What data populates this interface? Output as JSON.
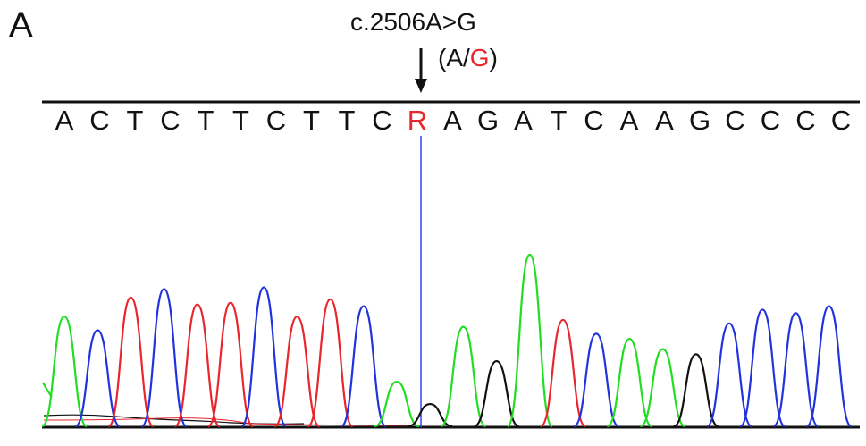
{
  "panel_label": "A",
  "mutation": {
    "label": "c.2506A>G",
    "genotype_open": "(A/",
    "genotype_alt": "G",
    "genotype_close": ")"
  },
  "colors": {
    "A": "#22dd22",
    "C": "#2233dd",
    "G": "#111111",
    "T": "#e8262d",
    "variant_text": "#e8262d",
    "marker_line": "#3344ee"
  },
  "sequence": [
    "A",
    "C",
    "T",
    "C",
    "T",
    "T",
    "C",
    "T",
    "T",
    "C",
    "R",
    "A",
    "G",
    "A",
    "T",
    "C",
    "A",
    "A",
    "G",
    "C",
    "C",
    "C",
    "C"
  ],
  "variant_index": 10,
  "chromatogram": {
    "type": "sanger-chromatogram",
    "peaks": [
      {
        "base": "A",
        "height": 0.64
      },
      {
        "base": "C",
        "height": 0.56
      },
      {
        "base": "T",
        "height": 0.75
      },
      {
        "base": "C",
        "height": 0.8
      },
      {
        "base": "T",
        "height": 0.71
      },
      {
        "base": "T",
        "height": 0.72
      },
      {
        "base": "C",
        "height": 0.81
      },
      {
        "base": "T",
        "height": 0.64
      },
      {
        "base": "T",
        "height": 0.74
      },
      {
        "base": "C",
        "height": 0.7
      },
      {
        "base": "A",
        "height": 0.26
      },
      {
        "base": "G",
        "height": 0.13
      },
      {
        "base": "A",
        "height": 0.58
      },
      {
        "base": "G",
        "height": 0.38
      },
      {
        "base": "A",
        "height": 1.0
      },
      {
        "base": "T",
        "height": 0.62
      },
      {
        "base": "C",
        "height": 0.54
      },
      {
        "base": "A",
        "height": 0.51
      },
      {
        "base": "A",
        "height": 0.45
      },
      {
        "base": "G",
        "height": 0.42
      },
      {
        "base": "C",
        "height": 0.6
      },
      {
        "base": "C",
        "height": 0.68
      },
      {
        "base": "C",
        "height": 0.66
      },
      {
        "base": "C",
        "height": 0.7
      }
    ]
  }
}
